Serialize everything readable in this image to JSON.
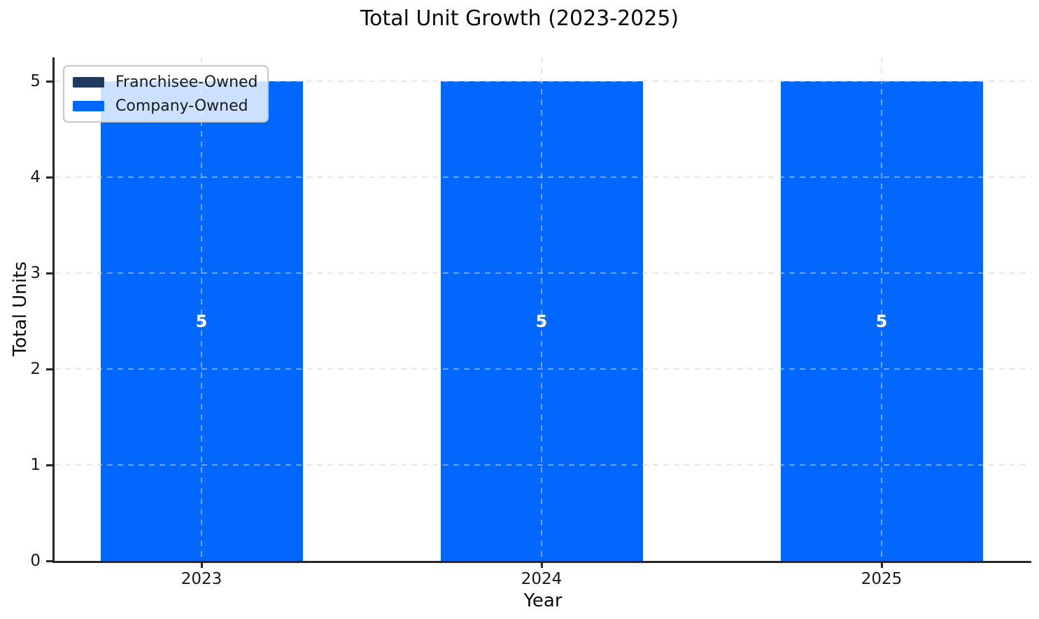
{
  "chart_data": {
    "type": "bar",
    "stacked": true,
    "title": "Total Unit Growth (2023-2025)",
    "xlabel": "Year",
    "ylabel": "Total Units",
    "categories": [
      "2023",
      "2024",
      "2025"
    ],
    "series": [
      {
        "name": "Franchisee-Owned",
        "color": "#1e3a5f",
        "values": [
          0,
          0,
          0
        ]
      },
      {
        "name": "Company-Owned",
        "color": "#0268fd",
        "values": [
          5,
          5,
          5
        ]
      }
    ],
    "totals": [
      5,
      5,
      5
    ],
    "bar_labels": [
      "5",
      "5",
      "5"
    ],
    "bar_label_color": "#ffffff",
    "ylim": [
      0,
      5.25
    ],
    "yticks": [
      0,
      1,
      2,
      3,
      4,
      5
    ],
    "grid": true,
    "grid_style": "dashed",
    "legend": {
      "position": "upper-left"
    }
  },
  "colors": {
    "background": "#ffffff",
    "axis": "#262626",
    "text": "#1a1a1a"
  }
}
